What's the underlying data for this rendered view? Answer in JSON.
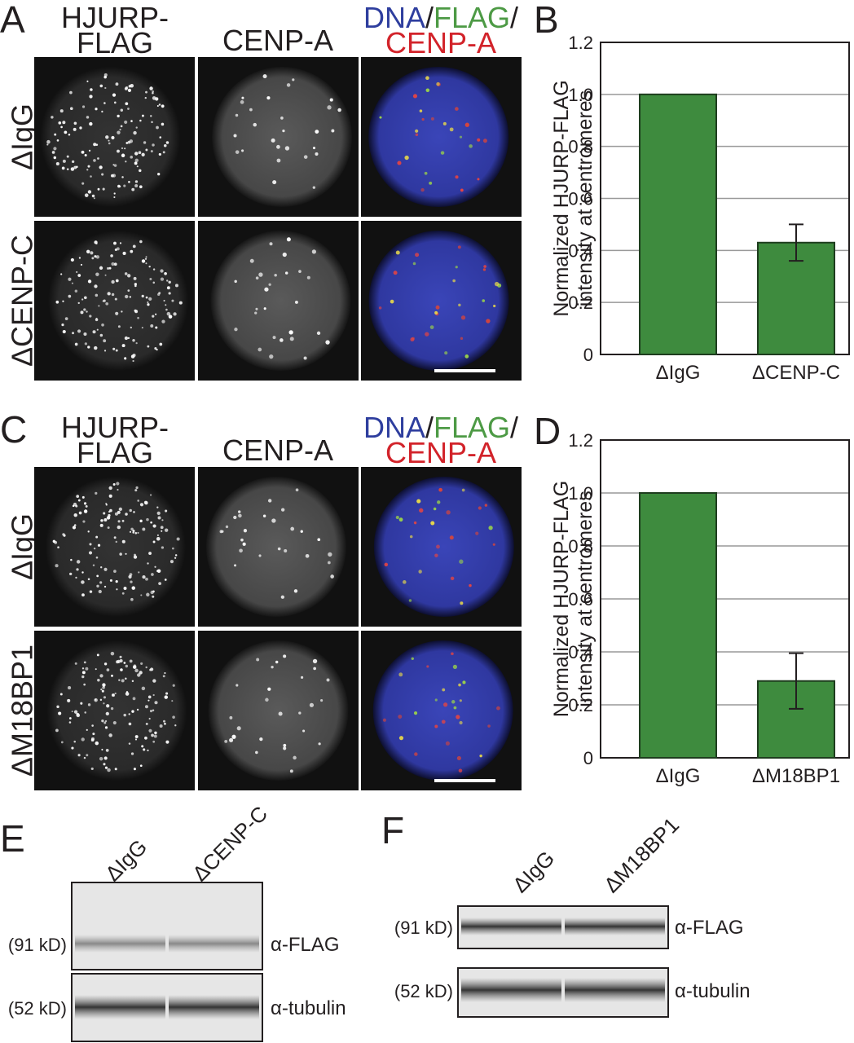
{
  "micrographs": [
    {
      "label": "A",
      "columns": [
        [
          [
            {
              "text": "HJURP-",
              "color": "#231f20"
            }
          ],
          [
            {
              "text": "FLAG",
              "color": "#231f20"
            }
          ]
        ],
        [
          [
            {
              "text": "CENP-A",
              "color": "#231f20"
            }
          ]
        ],
        [
          [
            {
              "text": "DNA",
              "color": "#2e3e9e"
            },
            {
              "text": "/",
              "color": "#231f20"
            },
            {
              "text": "FLAG",
              "color": "#4d9a45"
            },
            {
              "text": "/",
              "color": "#231f20"
            }
          ],
          [
            {
              "text": "CENP-A",
              "color": "#d2232a"
            }
          ]
        ]
      ],
      "rows": [
        "ΔIgG",
        "ΔCENP-C"
      ]
    },
    {
      "label": "C",
      "columns": [
        [
          [
            {
              "text": "HJURP-",
              "color": "#231f20"
            }
          ],
          [
            {
              "text": "FLAG",
              "color": "#231f20"
            }
          ]
        ],
        [
          [
            {
              "text": "CENP-A",
              "color": "#231f20"
            }
          ]
        ],
        [
          [
            {
              "text": "DNA",
              "color": "#2e3e9e"
            },
            {
              "text": "/",
              "color": "#231f20"
            },
            {
              "text": "FLAG",
              "color": "#4d9a45"
            },
            {
              "text": "/",
              "color": "#231f20"
            }
          ],
          [
            {
              "text": "CENP-A",
              "color": "#d2232a"
            }
          ]
        ]
      ],
      "rows": [
        "ΔIgG",
        "ΔM18BP1"
      ]
    }
  ],
  "chart_data": [
    {
      "type": "bar",
      "label": "B",
      "ylabel": [
        "Normalized HJURP-FLAG",
        "intensity at centromeres"
      ],
      "categories": [
        "ΔIgG",
        "ΔCENP-C"
      ],
      "values": [
        1.0,
        0.43
      ],
      "errors": [
        null,
        0.07
      ],
      "color": "#3e8b3e",
      "ylim": [
        0,
        1.2
      ],
      "yticks": [
        0,
        0.2,
        0.4,
        0.6,
        0.8,
        {
          "value": 1,
          "label": "1.0"
        },
        1.2
      ],
      "grid": true
    },
    {
      "type": "bar",
      "label": "D",
      "ylabel": [
        "Normalized HJURP-FLAG",
        "intensity at centromeres"
      ],
      "categories": [
        "ΔIgG",
        "ΔM18BP1"
      ],
      "values": [
        1.0,
        0.29
      ],
      "errors": [
        null,
        0.105
      ],
      "color": "#3e8b3e",
      "ylim": [
        0,
        1.2
      ],
      "yticks": [
        0,
        0.2,
        0.4,
        0.6,
        0.8,
        {
          "value": 1,
          "label": "1.0"
        },
        1.2
      ],
      "grid": true
    }
  ],
  "blots": [
    {
      "label": "E",
      "lanes": [
        "ΔIgG",
        "ΔCENP-C"
      ],
      "rows": [
        {
          "size": "(91 kD)",
          "antibody": "α-FLAG"
        },
        {
          "size": "(52 kD)",
          "antibody": "α-tubulin"
        }
      ]
    },
    {
      "label": "F",
      "lanes": [
        "ΔIgG",
        "ΔM18BP1"
      ],
      "rows": [
        {
          "size": "(91 kD)",
          "antibody": "α-FLAG"
        },
        {
          "size": "(52 kD)",
          "antibody": "α-tubulin"
        }
      ]
    }
  ]
}
